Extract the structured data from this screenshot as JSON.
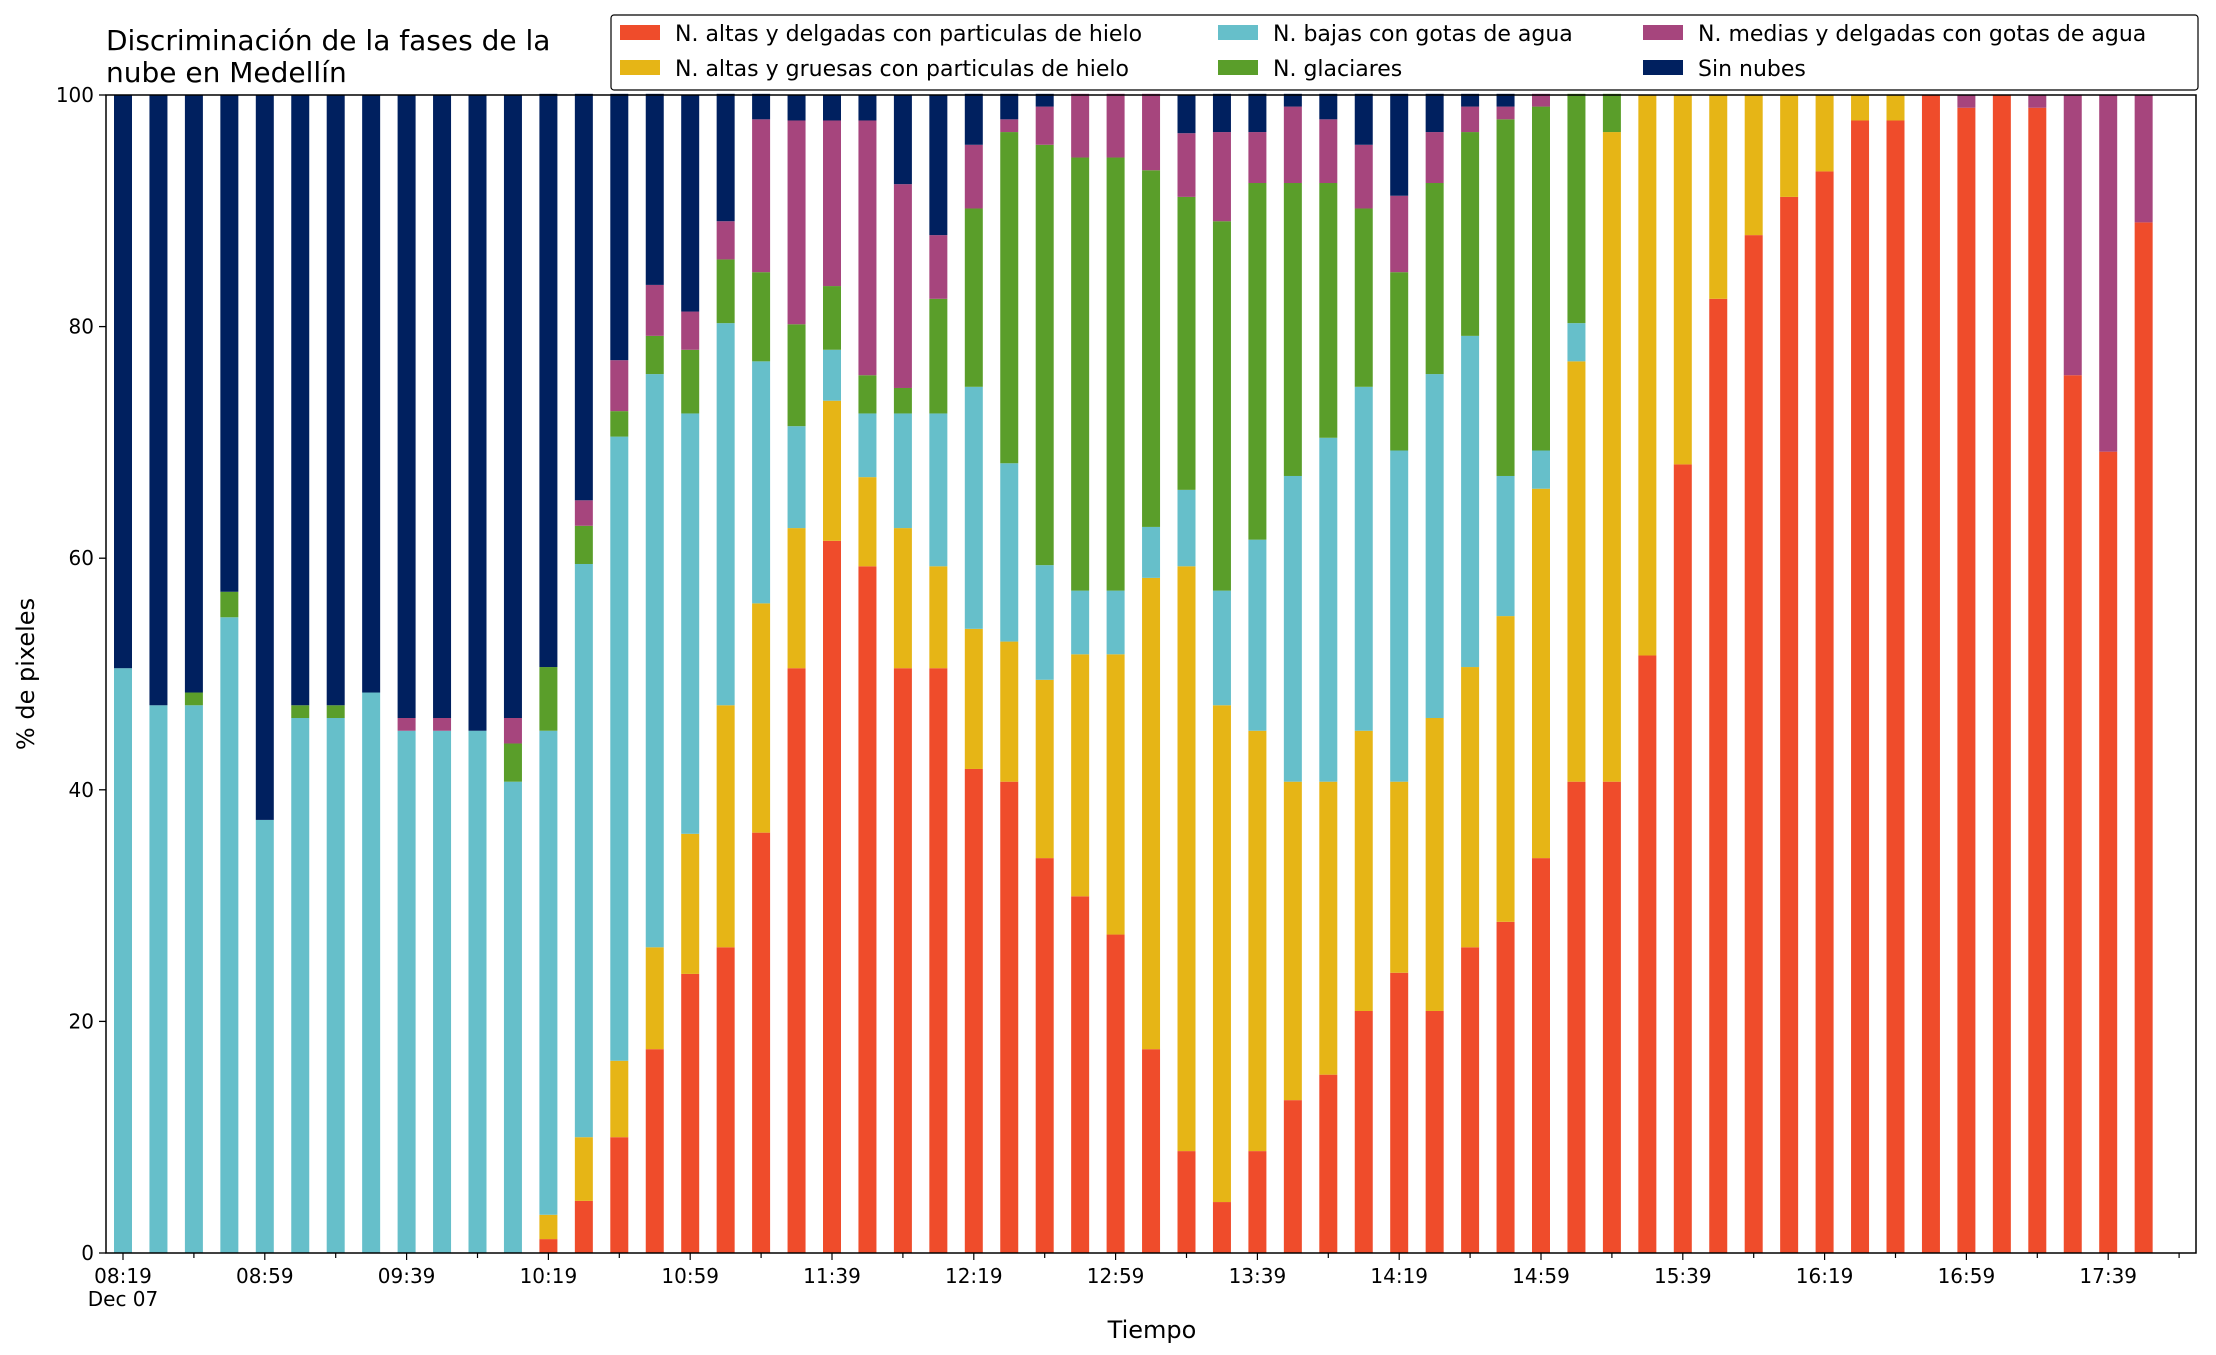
{
  "chart_data": {
    "type": "bar",
    "stacked": true,
    "title_lines": [
      "Discriminación de la fases de la",
      "nube en Medellín"
    ],
    "xlabel": "Tiempo",
    "ylabel": "% de pixeles",
    "ylim": [
      0,
      100
    ],
    "y_ticks": [
      "0",
      "20",
      "40",
      "60",
      "80",
      "100"
    ],
    "x_tick_labels": [
      "08:19",
      "08:59",
      "09:39",
      "10:19",
      "10:59",
      "11:39",
      "12:19",
      "12:59",
      "13:39",
      "14:19",
      "14:59",
      "15:39",
      "16:19",
      "16:59",
      "17:39"
    ],
    "x_date_label": "Dec 07",
    "grid": false,
    "legend_position": "top-right",
    "colors": [
      "#ef4c2b",
      "#e6b516",
      "#66bfca",
      "#5a9e2a",
      "#a6457d",
      "#00205f"
    ],
    "series": [
      {
        "name": "N. altas y delgadas con particulas de hielo",
        "color": "#ef4c2b",
        "values": [
          0,
          0,
          0,
          0,
          0,
          0,
          0,
          0,
          0,
          0,
          0,
          0,
          1.2,
          4.5,
          10,
          17.6,
          24.1,
          26.4,
          36.3,
          50.5,
          61.5,
          59.3,
          50.5,
          50.5,
          41.8,
          40.7,
          34.1,
          30.8,
          27.5,
          17.6,
          8.8,
          4.4,
          8.8,
          13.2,
          15.4,
          20.9,
          24.2,
          20.9,
          26.4,
          28.6,
          34.1,
          40.7,
          40.7,
          51.6,
          68.1,
          82.4,
          87.9,
          91.2,
          93.4,
          97.8,
          97.8,
          100,
          98.9,
          100,
          98.9,
          75.8,
          69.2,
          89
        ]
      },
      {
        "name": "N. altas y gruesas con particulas de hielo",
        "color": "#e6b516",
        "values": [
          0,
          0,
          0,
          0,
          0,
          0,
          0,
          0,
          0,
          0,
          0,
          0,
          2.1,
          5.5,
          6.6,
          8.8,
          12.1,
          20.9,
          19.8,
          12.1,
          12.1,
          7.7,
          12.1,
          8.8,
          12.1,
          12.1,
          15.4,
          20.9,
          24.2,
          40.7,
          50.5,
          42.9,
          36.3,
          27.5,
          25.3,
          24.2,
          16.5,
          25.3,
          24.2,
          26.4,
          31.9,
          36.3,
          56.1,
          48.4,
          31.9,
          17.6,
          12.1,
          8.8,
          6.6,
          2.2,
          2.2,
          0,
          0,
          0,
          0,
          0,
          0,
          0
        ]
      },
      {
        "name": "N. bajas con gotas de agua",
        "color": "#66bfca",
        "values": [
          50.5,
          47.3,
          47.3,
          54.9,
          37.4,
          46.2,
          46.2,
          48.4,
          45.1,
          45.1,
          45.1,
          40.7,
          41.8,
          49.5,
          53.9,
          49.5,
          36.3,
          33,
          20.9,
          8.8,
          4.4,
          5.5,
          9.9,
          13.2,
          20.9,
          15.4,
          9.9,
          5.5,
          5.5,
          4.4,
          6.6,
          9.9,
          16.5,
          26.4,
          29.7,
          29.7,
          28.6,
          29.7,
          28.6,
          12.1,
          3.3,
          3.3,
          0,
          0,
          0,
          0,
          0,
          0,
          0,
          0,
          0,
          0,
          0,
          0,
          0,
          0,
          0,
          0
        ]
      },
      {
        "name": "N. glaciares",
        "color": "#5a9e2a",
        "values": [
          0,
          0,
          1.1,
          2.2,
          0,
          1.1,
          1.1,
          0,
          0,
          0,
          0,
          3.3,
          5.5,
          3.3,
          2.2,
          3.3,
          5.5,
          5.5,
          7.7,
          8.8,
          5.5,
          3.3,
          2.2,
          9.9,
          15.4,
          28.6,
          36.3,
          37.4,
          37.4,
          30.8,
          25.3,
          31.9,
          30.8,
          25.3,
          22,
          15.4,
          15.4,
          16.5,
          17.6,
          30.8,
          29.7,
          19.8,
          3.3,
          0,
          0,
          0,
          0,
          0,
          0,
          0,
          0,
          0,
          0,
          0,
          0,
          0,
          0,
          0
        ]
      },
      {
        "name": "N. medias y delgadas con gotas de agua",
        "color": "#a6457d",
        "values": [
          0,
          0,
          0,
          0,
          0,
          0,
          0,
          0,
          1.1,
          1.1,
          0,
          2.2,
          0,
          2.2,
          4.4,
          4.4,
          3.3,
          3.3,
          13.2,
          17.6,
          14.3,
          22,
          17.6,
          5.5,
          5.5,
          1.1,
          3.3,
          5.5,
          5.5,
          6.6,
          5.5,
          7.7,
          4.4,
          6.6,
          5.5,
          5.5,
          6.6,
          4.4,
          2.2,
          1.1,
          1.1,
          0,
          0,
          0,
          0,
          0,
          0,
          0,
          0,
          0,
          0,
          0,
          1.1,
          0,
          1.1,
          24.2,
          30.8,
          11
        ]
      },
      {
        "name": "Sin nubes",
        "color": "#00205f",
        "values": [
          49.5,
          52.7,
          51.6,
          42.9,
          62.6,
          52.7,
          52.7,
          51.6,
          53.8,
          53.8,
          54.9,
          53.8,
          49.5,
          35.1,
          23,
          16.5,
          18.7,
          11,
          2.2,
          2.2,
          2.2,
          2.2,
          7.7,
          12.1,
          4.4,
          2.2,
          1.1,
          0,
          0,
          0,
          3.3,
          3.3,
          3.3,
          1.1,
          2.2,
          4.4,
          8.8,
          3.3,
          1.1,
          1.1,
          0,
          0,
          0,
          0,
          0,
          0,
          0,
          0,
          0,
          0,
          0,
          0,
          0,
          0,
          0,
          0,
          0,
          0
        ]
      }
    ]
  }
}
